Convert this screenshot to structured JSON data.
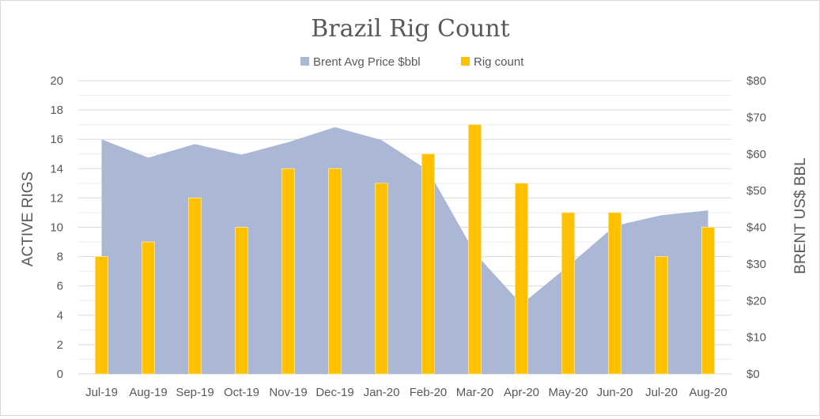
{
  "chart_data": {
    "type": "bar",
    "title": "Brazil Rig Count",
    "categories": [
      "Jul-19",
      "Aug-19",
      "Sep-19",
      "Oct-19",
      "Nov-19",
      "Dec-19",
      "Jan-20",
      "Feb-20",
      "Mar-20",
      "Apr-20",
      "May-20",
      "Jun-20",
      "Jul-20",
      "Aug-20"
    ],
    "series": [
      {
        "name": "Brent Avg Price $bbl",
        "type": "area",
        "axis": "right",
        "color": "#aab8d6",
        "values": [
          64,
          59,
          62.7,
          59.8,
          63.2,
          67.3,
          63.8,
          55.5,
          33,
          19,
          29.4,
          40.4,
          43.3,
          44.6
        ]
      },
      {
        "name": "Rig count",
        "type": "bar",
        "axis": "left",
        "color": "#ffc000",
        "values": [
          8,
          9,
          12,
          10,
          14,
          14,
          13,
          15,
          17,
          13,
          11,
          11,
          8,
          10
        ]
      }
    ],
    "ylabel": "ACTIVE RIGS",
    "ylabel_right": "BRENT US$ BBL",
    "ylim": [
      0,
      20
    ],
    "yticks": [
      "0",
      "2",
      "4",
      "6",
      "8",
      "10",
      "12",
      "14",
      "16",
      "18",
      "20"
    ],
    "ylim_right": [
      0,
      80
    ],
    "yticks_right": [
      "$0",
      "$10",
      "$20",
      "$30",
      "$40",
      "$50",
      "$60",
      "$70",
      "$80"
    ],
    "grid": true,
    "legend_position": "top"
  }
}
